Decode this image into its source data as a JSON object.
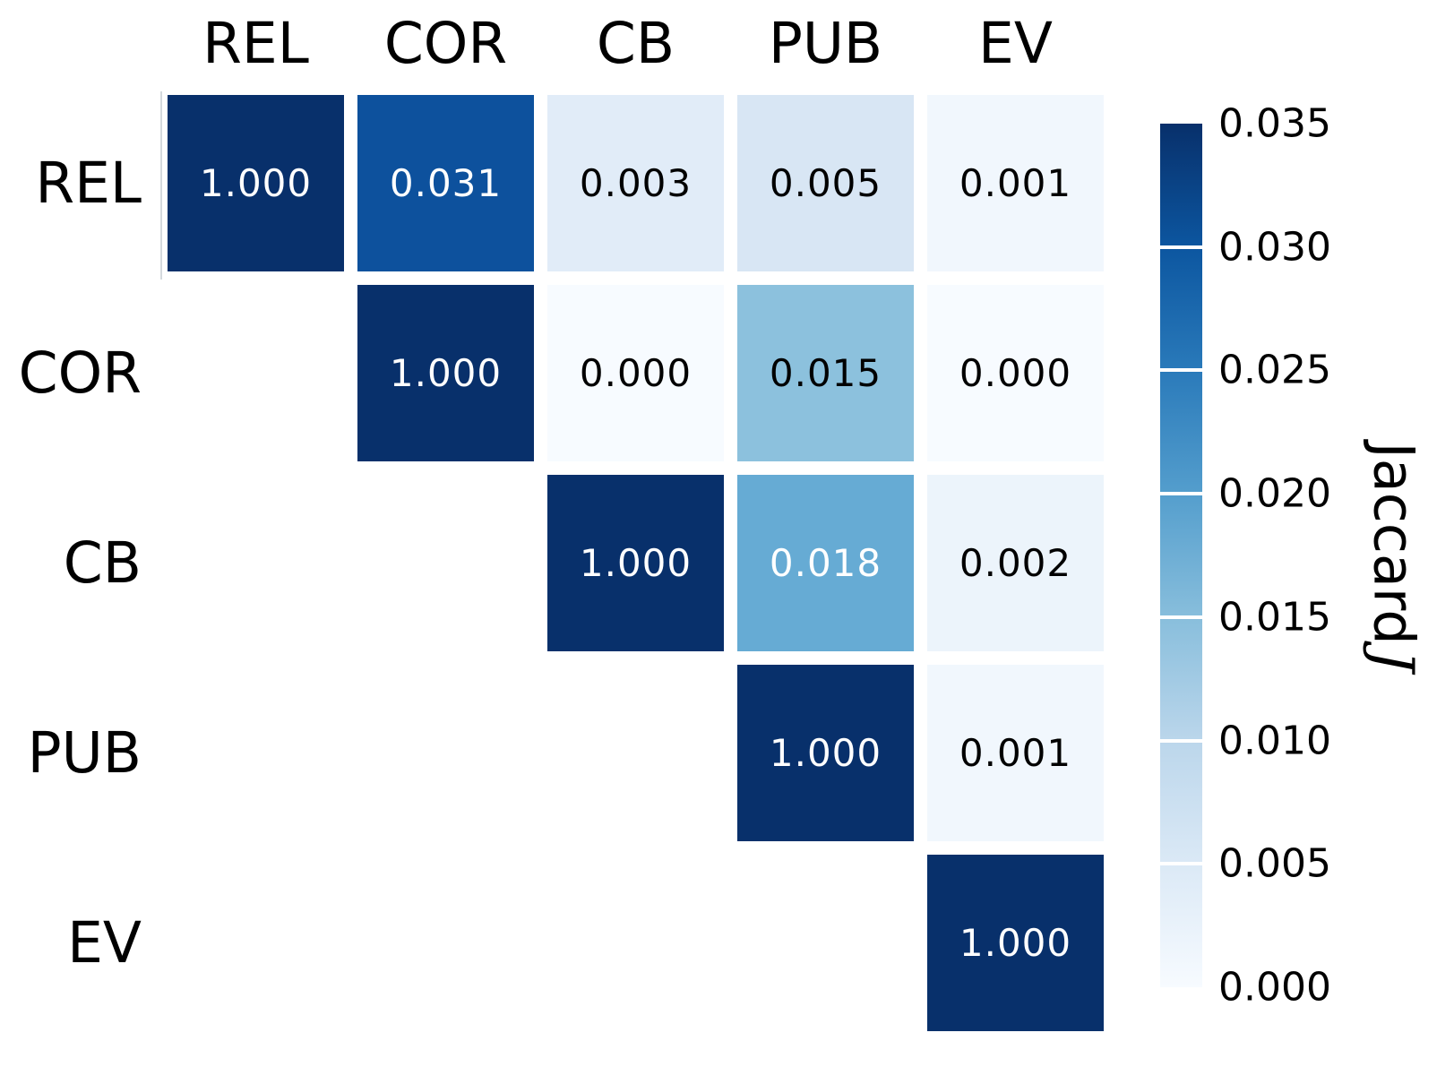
{
  "chart_data": {
    "type": "heatmap",
    "title": "",
    "categories": [
      "REL",
      "COR",
      "CB",
      "PUB",
      "EV"
    ],
    "matrix": [
      [
        1.0,
        0.031,
        0.003,
        0.005,
        0.001
      ],
      [
        null,
        1.0,
        0.0,
        0.015,
        0.0
      ],
      [
        null,
        null,
        1.0,
        0.018,
        0.002
      ],
      [
        null,
        null,
        null,
        1.0,
        0.001
      ],
      [
        null,
        null,
        null,
        null,
        1.0
      ]
    ],
    "mask": "lower-triangle-hidden",
    "grid": "off",
    "cells": [
      {
        "row": "REL",
        "col": "REL",
        "value": 1.0,
        "label": "1.000",
        "bg": "#08306b",
        "fg": "#ffffff"
      },
      {
        "row": "REL",
        "col": "COR",
        "value": 0.031,
        "label": "0.031",
        "bg": "#0d519d",
        "fg": "#ffffff"
      },
      {
        "row": "REL",
        "col": "CB",
        "value": 0.003,
        "label": "0.003",
        "bg": "#e1ecf8",
        "fg": "#000000"
      },
      {
        "row": "REL",
        "col": "PUB",
        "value": 0.005,
        "label": "0.005",
        "bg": "#d8e6f4",
        "fg": "#000000"
      },
      {
        "row": "REL",
        "col": "EV",
        "value": 0.001,
        "label": "0.001",
        "bg": "#f1f7fd",
        "fg": "#000000"
      },
      {
        "row": "COR",
        "col": "COR",
        "value": 1.0,
        "label": "1.000",
        "bg": "#08306b",
        "fg": "#ffffff"
      },
      {
        "row": "COR",
        "col": "CB",
        "value": 0.0,
        "label": "0.000",
        "bg": "#f7fbff",
        "fg": "#000000"
      },
      {
        "row": "COR",
        "col": "PUB",
        "value": 0.015,
        "label": "0.015",
        "bg": "#8cc1dd",
        "fg": "#000000"
      },
      {
        "row": "COR",
        "col": "EV",
        "value": 0.0,
        "label": "0.000",
        "bg": "#f7fbff",
        "fg": "#000000"
      },
      {
        "row": "CB",
        "col": "CB",
        "value": 1.0,
        "label": "1.000",
        "bg": "#08306b",
        "fg": "#ffffff"
      },
      {
        "row": "CB",
        "col": "PUB",
        "value": 0.018,
        "label": "0.018",
        "bg": "#66abd4",
        "fg": "#ffffff"
      },
      {
        "row": "CB",
        "col": "EV",
        "value": 0.002,
        "label": "0.002",
        "bg": "#ecf4fb",
        "fg": "#000000"
      },
      {
        "row": "PUB",
        "col": "PUB",
        "value": 1.0,
        "label": "1.000",
        "bg": "#08306b",
        "fg": "#ffffff"
      },
      {
        "row": "PUB",
        "col": "EV",
        "value": 0.001,
        "label": "0.001",
        "bg": "#f1f7fd",
        "fg": "#000000"
      },
      {
        "row": "EV",
        "col": "EV",
        "value": 1.0,
        "label": "1.000",
        "bg": "#08306b",
        "fg": "#ffffff"
      }
    ],
    "colorbar": {
      "label": "Jaccard",
      "label_symbol": "J",
      "ticks": [
        "0.035",
        "0.030",
        "0.025",
        "0.020",
        "0.015",
        "0.010",
        "0.005",
        "0.000"
      ],
      "vmin": 0.0,
      "vmax": 0.035,
      "colormap": "Blues",
      "tick_divider_color": "#ffffff",
      "gradient_bottom_to_top": [
        "#f7fbff",
        "#dbe9f6",
        "#bbd6eb",
        "#88bedc",
        "#549ecd",
        "#2a7aba",
        "#0c56a0",
        "#08306b"
      ]
    },
    "colors": {
      "background": "#ffffff",
      "text": "#000000",
      "max_cell": "#08306b",
      "min_cell": "#f7fbff"
    }
  }
}
